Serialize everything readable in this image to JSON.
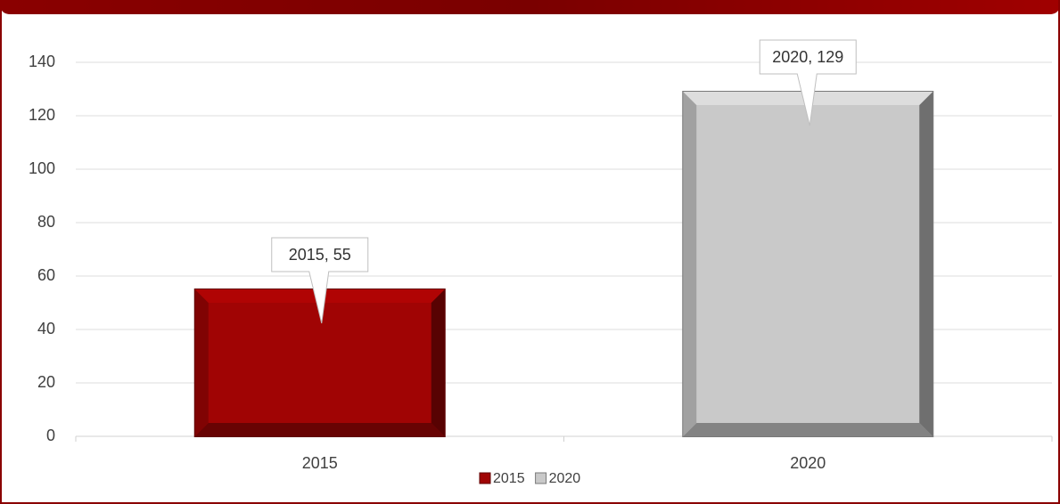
{
  "chart_data": {
    "type": "bar",
    "categories": [
      "2015",
      "2020"
    ],
    "values": [
      55,
      129
    ],
    "value_labels": [
      "2015, 55",
      "2020, 129"
    ],
    "colors": [
      "#a00404",
      "#c9c9c9"
    ],
    "ylim": [
      0,
      140
    ],
    "yticks": [
      0,
      20,
      40,
      60,
      80,
      100,
      120,
      140
    ],
    "grid": true,
    "legend": "bottom"
  }
}
